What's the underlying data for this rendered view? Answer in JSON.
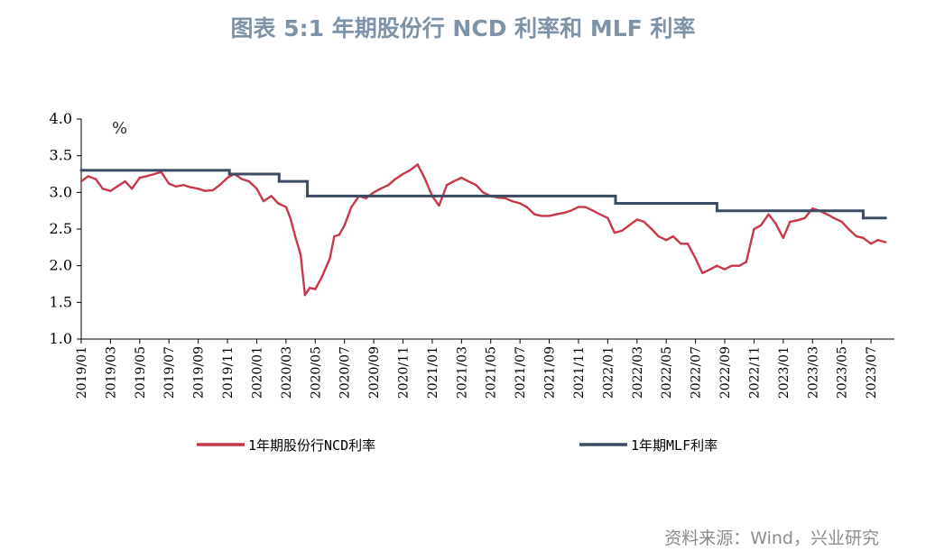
{
  "title": "图表 5:1 年期股份行 NCD 利率和 MLF 利率",
  "source": "资料来源：Wind，兴业研究",
  "colors": {
    "ncd": "#c8374a",
    "mlf": "#3b4b63",
    "title": "#7f93a8",
    "source": "#8c8c8c"
  },
  "chart_data": {
    "type": "line",
    "title": "图表 5:1 年期股份行 NCD 利率和 MLF 利率",
    "ylabel": "%",
    "ylim": [
      1.0,
      4.0
    ],
    "yticks": [
      "4.0",
      "3.5",
      "3.0",
      "2.5",
      "2.0",
      "1.5",
      "1.0"
    ],
    "xlim": [
      "2019-01",
      "2023-08"
    ],
    "xticks": [
      "2019/01",
      "2019/03",
      "2019/05",
      "2019/07",
      "2019/09",
      "2019/11",
      "2020/01",
      "2020/03",
      "2020/05",
      "2020/07",
      "2020/09",
      "2020/11",
      "2021/01",
      "2021/03",
      "2021/05",
      "2021/07",
      "2021/09",
      "2021/11",
      "2022/01",
      "2022/03",
      "2022/05",
      "2022/07",
      "2022/09",
      "2022/11",
      "2023/01",
      "2023/03",
      "2023/05",
      "2023/07"
    ],
    "legend_position": "bottom",
    "grid": false,
    "series": [
      {
        "name": "1年期股份行NCD利率",
        "style": "line",
        "x": [
          "2019-01",
          "2019-01-15",
          "2019-02",
          "2019-02-15",
          "2019-03",
          "2019-03-15",
          "2019-04",
          "2019-04-15",
          "2019-05",
          "2019-05-15",
          "2019-06",
          "2019-06-15",
          "2019-07",
          "2019-07-15",
          "2019-08",
          "2019-08-15",
          "2019-09",
          "2019-09-15",
          "2019-10",
          "2019-10-15",
          "2019-11",
          "2019-11-15",
          "2019-12",
          "2019-12-15",
          "2020-01",
          "2020-01-15",
          "2020-02",
          "2020-02-15",
          "2020-03",
          "2020-03-10",
          "2020-03-20",
          "2020-04",
          "2020-04-10",
          "2020-04-20",
          "2020-05",
          "2020-05-15",
          "2020-06",
          "2020-06-10",
          "2020-06-20",
          "2020-07",
          "2020-07-15",
          "2020-08",
          "2020-08-15",
          "2020-09",
          "2020-09-15",
          "2020-10",
          "2020-10-15",
          "2020-11",
          "2020-11-15",
          "2020-12",
          "2020-12-15",
          "2021-01",
          "2021-01-15",
          "2021-02",
          "2021-02-15",
          "2021-03",
          "2021-03-15",
          "2021-04",
          "2021-04-15",
          "2021-05",
          "2021-05-15",
          "2021-06",
          "2021-06-15",
          "2021-07",
          "2021-07-15",
          "2021-08",
          "2021-08-15",
          "2021-09",
          "2021-09-15",
          "2021-10",
          "2021-10-15",
          "2021-11",
          "2021-11-15",
          "2021-12",
          "2021-12-15",
          "2022-01",
          "2022-01-15",
          "2022-02",
          "2022-02-15",
          "2022-03",
          "2022-03-15",
          "2022-04",
          "2022-04-15",
          "2022-05",
          "2022-05-15",
          "2022-06",
          "2022-06-15",
          "2022-07",
          "2022-07-15",
          "2022-08",
          "2022-08-15",
          "2022-09",
          "2022-09-15",
          "2022-10",
          "2022-10-15",
          "2022-11",
          "2022-11-15",
          "2022-12",
          "2022-12-15",
          "2023-01",
          "2023-01-15",
          "2023-02",
          "2023-02-15",
          "2023-03",
          "2023-03-15",
          "2023-04",
          "2023-04-15",
          "2023-05",
          "2023-05-15",
          "2023-06",
          "2023-06-15",
          "2023-07",
          "2023-07-15",
          "2023-08"
        ],
        "values": [
          3.15,
          3.22,
          3.18,
          3.05,
          3.02,
          3.08,
          3.15,
          3.05,
          3.2,
          3.22,
          3.25,
          3.28,
          3.12,
          3.08,
          3.1,
          3.07,
          3.05,
          3.02,
          3.03,
          3.1,
          3.2,
          3.25,
          3.18,
          3.15,
          3.05,
          2.88,
          2.95,
          2.85,
          2.8,
          2.65,
          2.4,
          2.15,
          1.6,
          1.7,
          1.68,
          1.85,
          2.1,
          2.4,
          2.42,
          2.55,
          2.8,
          2.95,
          2.92,
          3.0,
          3.05,
          3.1,
          3.18,
          3.25,
          3.3,
          3.38,
          3.2,
          2.95,
          2.82,
          3.1,
          3.15,
          3.2,
          3.15,
          3.1,
          3.0,
          2.95,
          2.93,
          2.92,
          2.88,
          2.85,
          2.8,
          2.7,
          2.68,
          2.68,
          2.7,
          2.72,
          2.75,
          2.8,
          2.8,
          2.75,
          2.7,
          2.65,
          2.45,
          2.48,
          2.55,
          2.63,
          2.6,
          2.5,
          2.4,
          2.35,
          2.4,
          2.3,
          2.3,
          2.1,
          1.9,
          1.95,
          2.0,
          1.95,
          2.0,
          2.0,
          2.05,
          2.5,
          2.55,
          2.7,
          2.58,
          2.38,
          2.6,
          2.62,
          2.65,
          2.78,
          2.75,
          2.7,
          2.65,
          2.6,
          2.5,
          2.4,
          2.38,
          2.3,
          2.35,
          2.32
        ]
      },
      {
        "name": "1年期MLF利率",
        "style": "step",
        "x": [
          "2019-01",
          "2019-11-05",
          "2020-02-17",
          "2020-04-15",
          "2021-12-15",
          "2022-01-17",
          "2022-08-15",
          "2023-06-15",
          "2023-08"
        ],
        "values": [
          3.3,
          3.25,
          3.15,
          2.95,
          2.95,
          2.85,
          2.75,
          2.65,
          2.65
        ]
      }
    ]
  }
}
